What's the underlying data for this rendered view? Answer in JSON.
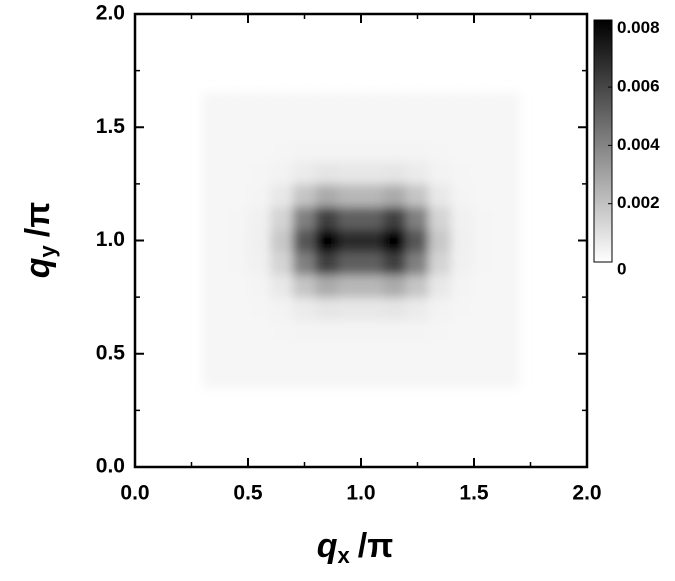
{
  "chart_data": {
    "type": "heatmap",
    "x_label": {
      "main": "q",
      "sub": "x",
      "rest": "/π"
    },
    "y_label": {
      "main": "q",
      "sub": "y",
      "rest": "/π"
    },
    "xlim": [
      0,
      2
    ],
    "ylim": [
      0,
      2
    ],
    "xticks": [
      {
        "value": 0,
        "label": "0.0"
      },
      0.5,
      {
        "value": 1,
        "label": "1.0"
      },
      1.5,
      {
        "value": 2,
        "label": "2.0"
      }
    ],
    "yticks": [
      {
        "value": 0,
        "label": "0.0"
      },
      0.5,
      {
        "value": 1,
        "label": "1.0"
      },
      1.5,
      {
        "value": 2,
        "label": "2.0"
      }
    ],
    "x": [
      0.35,
      0.45,
      0.55,
      0.65,
      0.75,
      0.85,
      0.95,
      1.05,
      1.15,
      1.25,
      1.35,
      1.45,
      1.55,
      1.65
    ],
    "y": [
      0.4,
      0.5,
      0.6,
      0.7,
      0.8,
      0.9,
      1.0,
      1.1,
      1.2,
      1.3,
      1.4,
      1.5,
      1.6
    ],
    "z": [
      [
        0.0003,
        0.0003,
        0.0003,
        0.0003,
        0.0003,
        0.0003,
        0.0003,
        0.0003,
        0.0003,
        0.0003,
        0.0003,
        0.0003,
        0.0003,
        0.0003
      ],
      [
        0.0003,
        0.0003,
        0.0003,
        0.0003,
        0.0003,
        0.0003,
        0.0003,
        0.0003,
        0.0003,
        0.0003,
        0.0003,
        0.0003,
        0.0003,
        0.0003
      ],
      [
        0.0003,
        0.0003,
        0.0003,
        0.00031,
        0.00035,
        0.00037,
        0.00036,
        0.00036,
        0.00037,
        0.00035,
        0.00031,
        0.0003,
        0.0003,
        0.0003
      ],
      [
        0.0003,
        0.0003,
        0.00031,
        0.0004,
        0.00066,
        0.00086,
        0.00077,
        0.00077,
        0.00086,
        0.00066,
        0.0004,
        0.00031,
        0.0003,
        0.0003
      ],
      [
        0.0003,
        0.0003,
        0.00036,
        0.00076,
        0.00188,
        0.00274,
        0.00233,
        0.00233,
        0.00274,
        0.00188,
        0.00076,
        0.00036,
        0.0003,
        0.0003
      ],
      [
        0.0003,
        0.00031,
        0.00044,
        0.00141,
        0.00415,
        0.00624,
        0.00525,
        0.00525,
        0.00624,
        0.00415,
        0.00141,
        0.00044,
        0.00031,
        0.0003
      ],
      [
        0.0003,
        0.00031,
        0.00049,
        0.00179,
        0.00547,
        0.00829,
        0.00695,
        0.00695,
        0.00829,
        0.00547,
        0.00179,
        0.00049,
        0.00031,
        0.0003
      ],
      [
        0.0003,
        0.00031,
        0.00044,
        0.00141,
        0.00415,
        0.00624,
        0.00525,
        0.00525,
        0.00624,
        0.00415,
        0.00141,
        0.00044,
        0.00031,
        0.0003
      ],
      [
        0.0003,
        0.0003,
        0.00036,
        0.00076,
        0.00188,
        0.00274,
        0.00233,
        0.00233,
        0.00274,
        0.00188,
        0.00076,
        0.00036,
        0.0003,
        0.0003
      ],
      [
        0.0003,
        0.0003,
        0.00031,
        0.0004,
        0.00066,
        0.00086,
        0.00077,
        0.00077,
        0.00086,
        0.00066,
        0.0004,
        0.00031,
        0.0003,
        0.0003
      ],
      [
        0.0003,
        0.0003,
        0.0003,
        0.00031,
        0.00035,
        0.00037,
        0.00036,
        0.00036,
        0.00037,
        0.00035,
        0.00031,
        0.0003,
        0.0003,
        0.0003
      ],
      [
        0.0003,
        0.0003,
        0.0003,
        0.0003,
        0.0003,
        0.0003,
        0.0003,
        0.0003,
        0.0003,
        0.0003,
        0.0003,
        0.0003,
        0.0003,
        0.0003
      ],
      [
        0.0003,
        0.0003,
        0.0003,
        0.0003,
        0.0003,
        0.0003,
        0.0003,
        0.0003,
        0.0003,
        0.0003,
        0.0003,
        0.0003,
        0.0003,
        0.0003
      ]
    ],
    "clim": [
      0,
      0.0083
    ],
    "cticks": [
      0,
      0.002,
      0.004,
      0.006,
      0.008
    ]
  }
}
